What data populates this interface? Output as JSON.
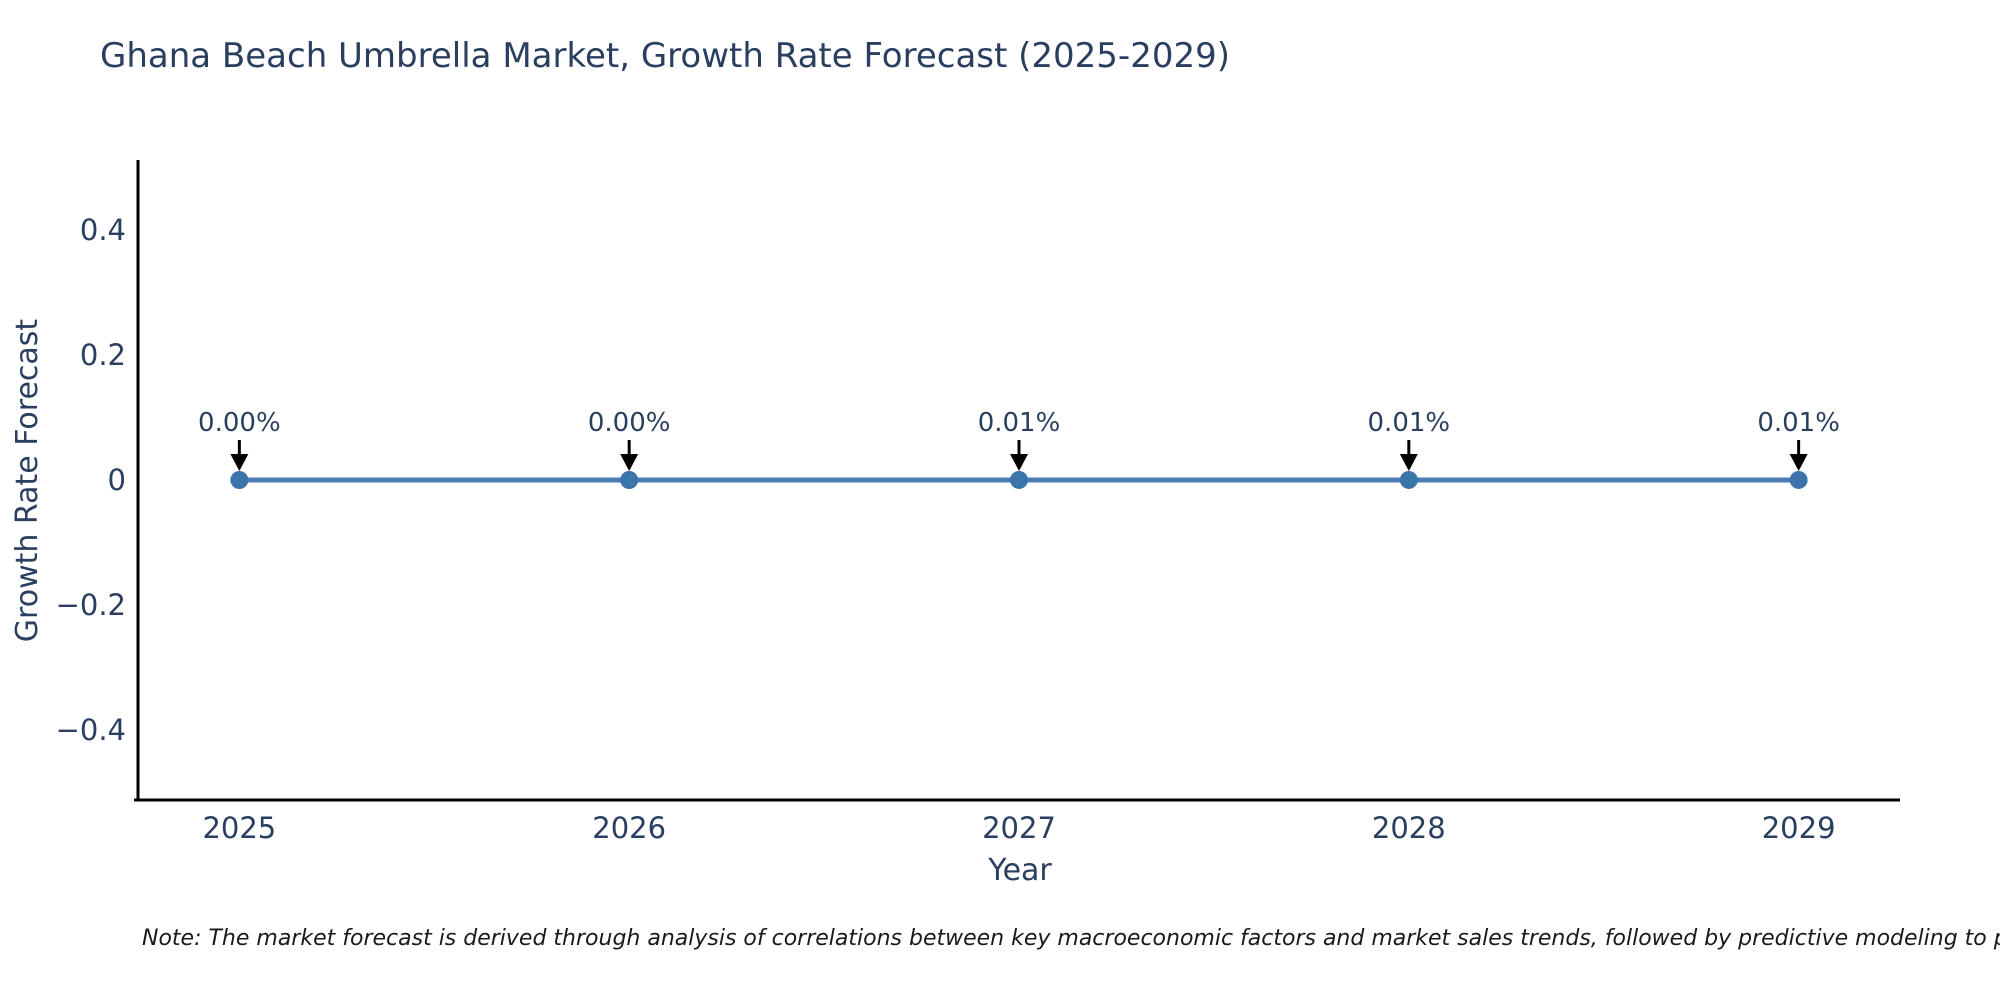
{
  "title": "Ghana Beach Umbrella Market, Growth Rate Forecast (2025-2029)",
  "note": "Note: The market forecast is derived through analysis of correlations between key macroeconomic factors and market sales trends, followed by predictive modeling to project future sales",
  "chart_data": {
    "type": "line",
    "title": "Ghana Beach Umbrella Market, Growth Rate Forecast (2025-2029)",
    "xlabel": "Year",
    "ylabel": "Growth Rate Forecast",
    "x": [
      2025,
      2026,
      2027,
      2028,
      2029
    ],
    "y": [
      0.0,
      0.0,
      0.0001,
      0.0001,
      0.0001
    ],
    "point_labels": [
      "0.00%",
      "0.00%",
      "0.01%",
      "0.01%",
      "0.01%"
    ],
    "xticks": [
      2025,
      2026,
      2027,
      2028,
      2029
    ],
    "xtick_labels": [
      "2025",
      "2026",
      "2027",
      "2028",
      "2029"
    ],
    "yticks": [
      0.4,
      0.2,
      0,
      -0.2,
      -0.4
    ],
    "ytick_labels": [
      "0.4",
      "0.2",
      "0",
      "−0.2",
      "−0.4"
    ],
    "xlim": [
      2024.74,
      2029.26
    ],
    "ylim": [
      -0.512,
      0.512
    ],
    "grid": false,
    "legend": false,
    "annotation_arrows": "down",
    "colors": {
      "line": "#4a7db3",
      "marker": "#3b73ab",
      "axis": "#000000",
      "tick_text": "#2a3f5f",
      "annotation_text": "#2a3f5f",
      "arrow": "#000000",
      "title_text": "#2a3f5f",
      "note_text": "#1a1a1a",
      "background": "#ffffff"
    }
  }
}
